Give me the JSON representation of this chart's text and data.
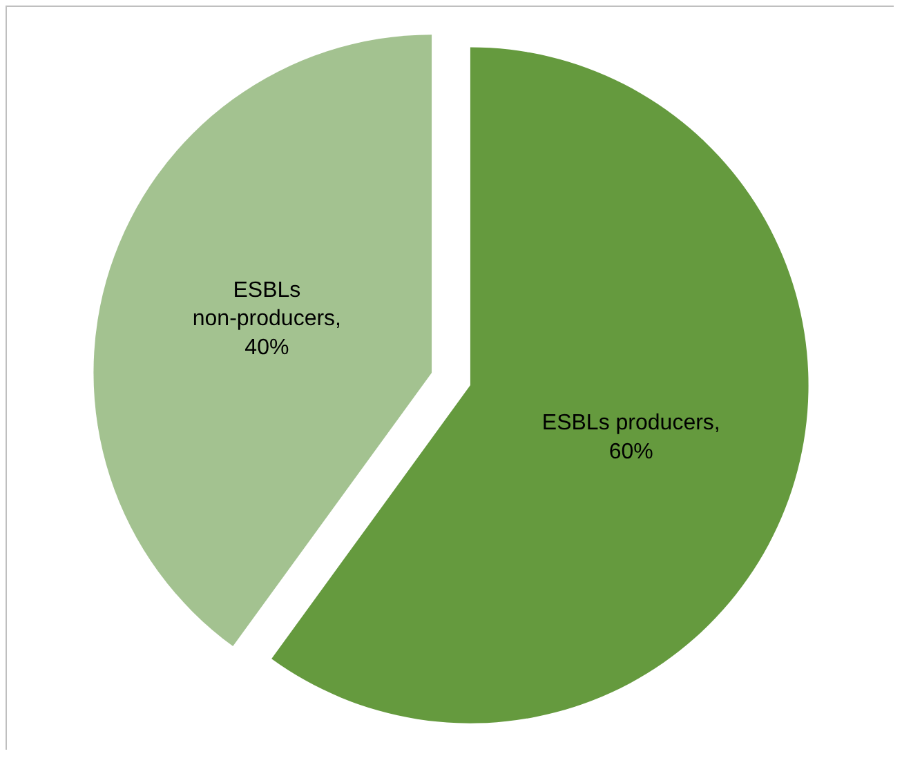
{
  "chart_data": {
    "type": "pie",
    "categories": [
      "ESBLs producers, 60%",
      "ESBLs non-producers, 40%"
    ],
    "values": [
      60,
      40
    ],
    "colors": [
      "#659a3e",
      "#a3c290"
    ],
    "legend": false
  }
}
